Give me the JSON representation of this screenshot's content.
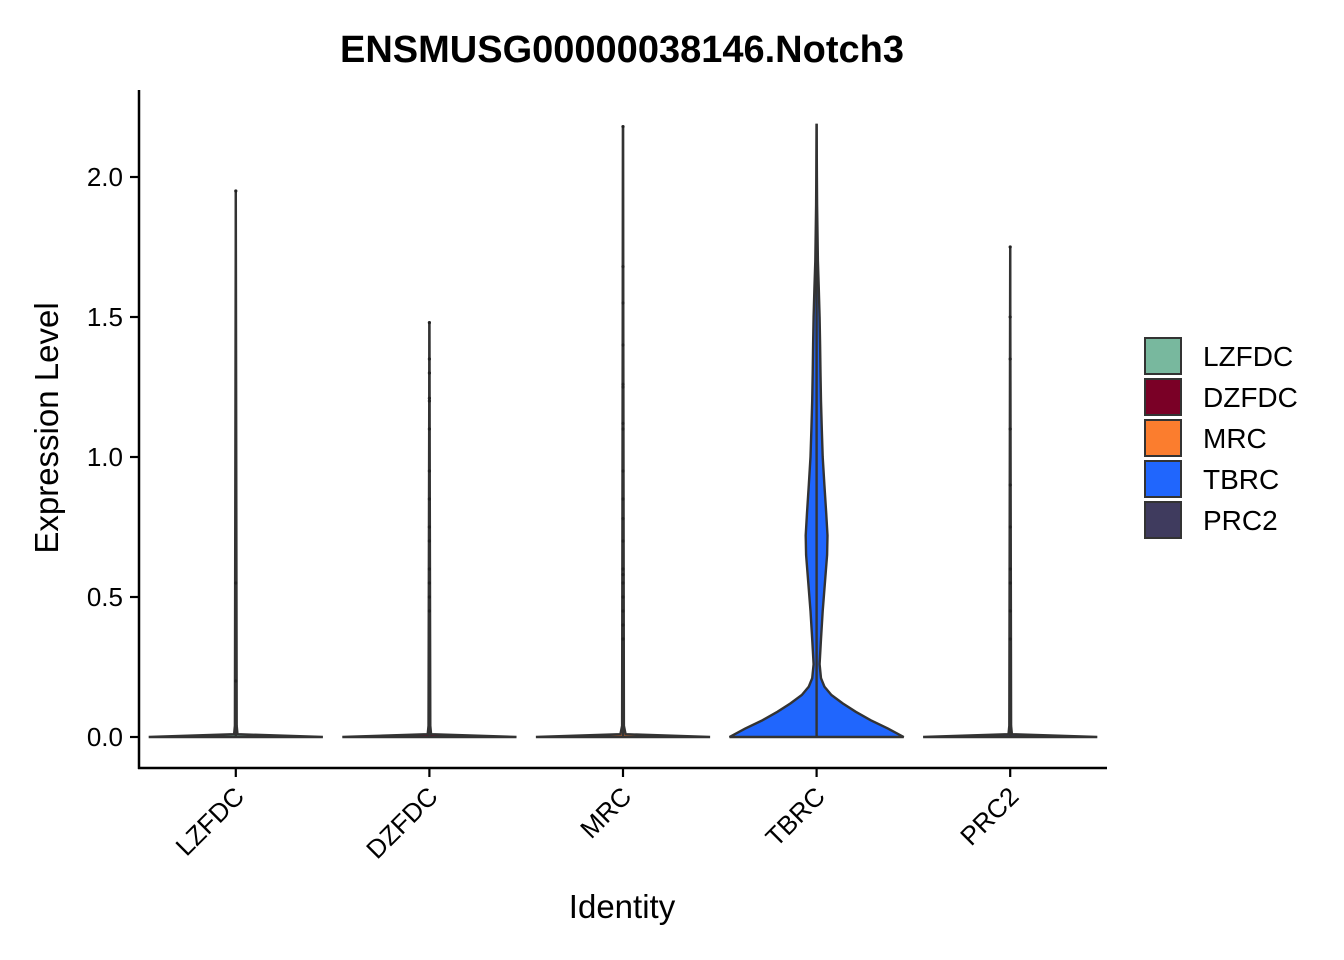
{
  "chart_data": {
    "type": "violin",
    "title": "ENSMUSG00000038146.Notch3",
    "xlabel": "Identity",
    "ylabel": "Expression Level",
    "ylim": [
      -0.11,
      2.3
    ],
    "yticks": [
      0.0,
      0.5,
      1.0,
      1.5,
      2.0
    ],
    "ytick_labels": [
      "0.0",
      "0.5",
      "1.0",
      "1.5",
      "2.0"
    ],
    "legend_position": "right",
    "grid": false,
    "categories": [
      "LZFDC",
      "DZFDC",
      "MRC",
      "TBRC",
      "PRC2"
    ],
    "series": [
      {
        "name": "LZFDC",
        "color": "#78B89E",
        "max": 1.95,
        "points": [
          1.95,
          0.55,
          0.2
        ],
        "density": [
          [
            0.0,
            1.0
          ],
          [
            0.01,
            0.02
          ],
          [
            0.04,
            0.01
          ],
          [
            1.95,
            0.0
          ]
        ]
      },
      {
        "name": "DZFDC",
        "color": "#7A0026",
        "max": 1.48,
        "points": [
          1.48,
          1.35,
          1.3,
          1.21,
          1.2,
          1.1,
          0.95,
          0.85,
          0.75,
          0.7,
          0.6,
          0.55,
          0.5,
          0.45
        ],
        "density": [
          [
            0.0,
            1.0
          ],
          [
            0.01,
            0.02
          ],
          [
            0.04,
            0.01
          ],
          [
            1.48,
            0.0
          ]
        ]
      },
      {
        "name": "MRC",
        "color": "#FB7D2E",
        "max": 2.18,
        "points": [
          2.18,
          1.68,
          1.55,
          1.4,
          1.26,
          1.25,
          1.12,
          1.1,
          0.95,
          0.85,
          0.78,
          0.7,
          0.6,
          0.58,
          0.55,
          0.5,
          0.45,
          0.4,
          0.35
        ],
        "density": [
          [
            0.0,
            1.0
          ],
          [
            0.01,
            0.03
          ],
          [
            0.04,
            0.01
          ],
          [
            2.18,
            0.0
          ]
        ]
      },
      {
        "name": "TBRC",
        "color": "#2066FD",
        "max": 2.19,
        "density": [
          [
            0.0,
            1.0
          ],
          [
            0.03,
            0.82
          ],
          [
            0.06,
            0.62
          ],
          [
            0.09,
            0.45
          ],
          [
            0.12,
            0.3
          ],
          [
            0.15,
            0.17
          ],
          [
            0.18,
            0.09
          ],
          [
            0.21,
            0.05
          ],
          [
            0.26,
            0.035
          ],
          [
            0.35,
            0.05
          ],
          [
            0.45,
            0.07
          ],
          [
            0.55,
            0.095
          ],
          [
            0.65,
            0.12
          ],
          [
            0.72,
            0.125
          ],
          [
            0.8,
            0.11
          ],
          [
            0.9,
            0.09
          ],
          [
            1.0,
            0.07
          ],
          [
            1.1,
            0.06
          ],
          [
            1.2,
            0.05
          ],
          [
            1.3,
            0.045
          ],
          [
            1.4,
            0.04
          ],
          [
            1.5,
            0.035
          ],
          [
            1.6,
            0.025
          ],
          [
            1.7,
            0.015
          ],
          [
            1.8,
            0.01
          ],
          [
            1.9,
            0.006
          ],
          [
            2.0,
            0.004
          ],
          [
            2.19,
            0.0
          ]
        ]
      },
      {
        "name": "PRC2",
        "color": "#3F3B5E",
        "max": 1.75,
        "points": [
          1.75,
          1.5,
          1.35,
          1.1,
          0.9,
          0.75,
          0.6,
          0.55,
          0.45,
          0.35
        ],
        "density": [
          [
            0.0,
            1.0
          ],
          [
            0.01,
            0.02
          ],
          [
            0.04,
            0.01
          ],
          [
            1.75,
            0.0
          ]
        ]
      }
    ]
  }
}
